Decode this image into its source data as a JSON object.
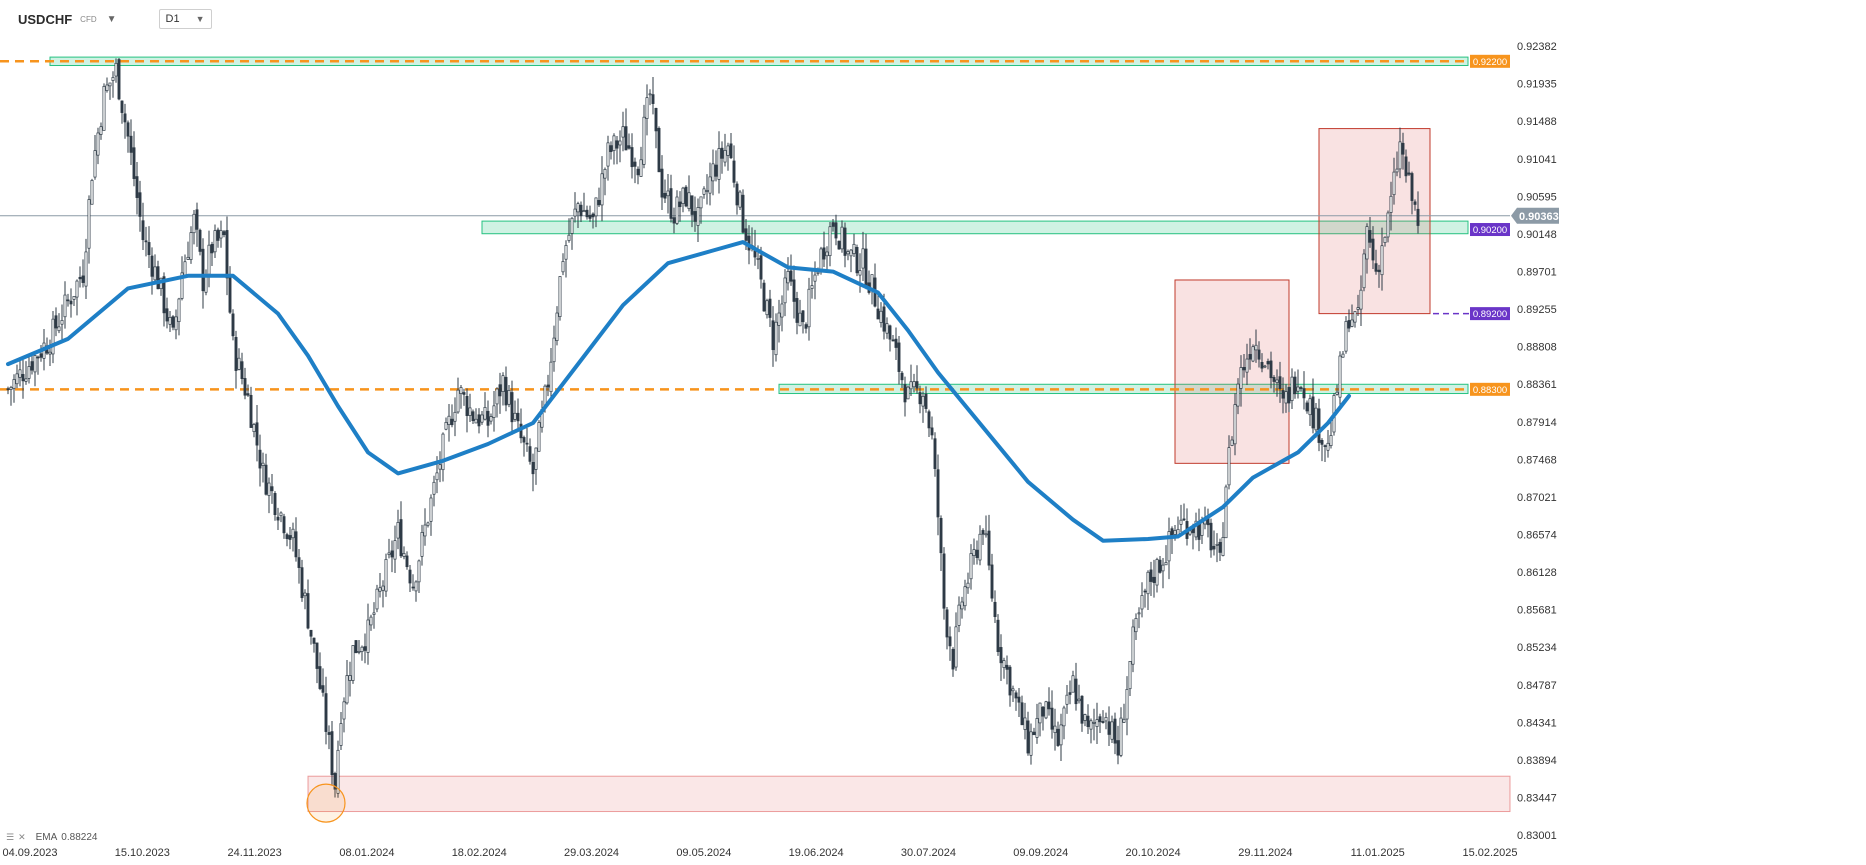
{
  "header": {
    "symbol": "USDCHF",
    "instrument_type": "CFD",
    "symbol_dropdown_icon": "chevron-down-icon",
    "timeframe": "D1",
    "timeframe_dropdown_icon": "chevron-down-icon"
  },
  "indicator_legend": {
    "icons": [
      "list-icon",
      "close-icon"
    ],
    "name": "EMA",
    "value": "0.88224"
  },
  "colors": {
    "bull_candle": "#ffffff",
    "bear_candle": "#2f3b46",
    "wick": "#2f3b46",
    "ema": "#1e7fc6",
    "support_orange": "#f7941d",
    "zone_green": "#26c281",
    "zone_red": "#e06060",
    "purple": "#6a35c8",
    "current_price": "#8c9aa6",
    "target_circle": "#f7941d"
  },
  "chart_data": {
    "type": "candlestick",
    "y_axis_ticks": [
      "0.92382",
      "0.91935",
      "0.91488",
      "0.91041",
      "0.90595",
      "0.90148",
      "0.89701",
      "0.89255",
      "0.88808",
      "0.88361",
      "0.87914",
      "0.87468",
      "0.87021",
      "0.86574",
      "0.86128",
      "0.85681",
      "0.85234",
      "0.84787",
      "0.84341",
      "0.83894",
      "0.83447",
      "0.83001"
    ],
    "x_axis_ticks": [
      "04.09.2023",
      "15.10.2023",
      "24.11.2023",
      "08.01.2024",
      "18.02.2024",
      "29.03.2024",
      "09.05.2024",
      "19.06.2024",
      "30.07.2024",
      "09.09.2024",
      "20.10.2024",
      "29.11.2024",
      "11.01.2025",
      "15.02.2025"
    ],
    "ylim": [
      0.83001,
      0.92382
    ],
    "current_price": "0.90363",
    "levels": [
      {
        "price": 0.922,
        "label": "0.92200",
        "style": "orange-dashed"
      },
      {
        "price": 0.902,
        "label": "0.90200",
        "style": "purple-box"
      },
      {
        "price": 0.892,
        "label": "0.89200",
        "style": "purple-dashed"
      },
      {
        "price": 0.883,
        "label": "0.88300",
        "style": "orange-dashed"
      }
    ],
    "close_path": [
      [
        0,
        0.883
      ],
      [
        14,
        0.889
      ],
      [
        18,
        0.892
      ],
      [
        25,
        0.897
      ],
      [
        28,
        0.909
      ],
      [
        32,
        0.918
      ],
      [
        36,
        0.921
      ],
      [
        40,
        0.913
      ],
      [
        45,
        0.901
      ],
      [
        50,
        0.896
      ],
      [
        55,
        0.889
      ],
      [
        58,
        0.897
      ],
      [
        62,
        0.903
      ],
      [
        65,
        0.896
      ],
      [
        68,
        0.9
      ],
      [
        72,
        0.901
      ],
      [
        75,
        0.888
      ],
      [
        80,
        0.882
      ],
      [
        85,
        0.873
      ],
      [
        90,
        0.869
      ],
      [
        95,
        0.865
      ],
      [
        100,
        0.856
      ],
      [
        103,
        0.85
      ],
      [
        106,
        0.843
      ],
      [
        109,
        0.836
      ],
      [
        111,
        0.845
      ],
      [
        115,
        0.852
      ],
      [
        120,
        0.854
      ],
      [
        125,
        0.86
      ],
      [
        130,
        0.866
      ],
      [
        135,
        0.86
      ],
      [
        140,
        0.868
      ],
      [
        145,
        0.876
      ],
      [
        150,
        0.883
      ],
      [
        155,
        0.88
      ],
      [
        160,
        0.879
      ],
      [
        165,
        0.884
      ],
      [
        170,
        0.878
      ],
      [
        175,
        0.873
      ],
      [
        180,
        0.884
      ],
      [
        185,
        0.899
      ],
      [
        190,
        0.905
      ],
      [
        195,
        0.903
      ],
      [
        200,
        0.911
      ],
      [
        205,
        0.913
      ],
      [
        210,
        0.91
      ],
      [
        214,
        0.918
      ],
      [
        218,
        0.907
      ],
      [
        222,
        0.904
      ],
      [
        226,
        0.906
      ],
      [
        230,
        0.903
      ],
      [
        235,
        0.909
      ],
      [
        240,
        0.912
      ],
      [
        245,
        0.903
      ],
      [
        250,
        0.897
      ],
      [
        255,
        0.889
      ],
      [
        260,
        0.896
      ],
      [
        265,
        0.89
      ],
      [
        270,
        0.898
      ],
      [
        275,
        0.903
      ],
      [
        280,
        0.899
      ],
      [
        285,
        0.898
      ],
      [
        290,
        0.893
      ],
      [
        295,
        0.888
      ],
      [
        300,
        0.882
      ],
      [
        305,
        0.883
      ],
      [
        308,
        0.877
      ],
      [
        310,
        0.868
      ],
      [
        312,
        0.857
      ],
      [
        315,
        0.851
      ],
      [
        318,
        0.858
      ],
      [
        322,
        0.863
      ],
      [
        325,
        0.867
      ],
      [
        330,
        0.853
      ],
      [
        335,
        0.847
      ],
      [
        340,
        0.841
      ],
      [
        345,
        0.845
      ],
      [
        350,
        0.841
      ],
      [
        355,
        0.848
      ],
      [
        360,
        0.842
      ],
      [
        365,
        0.845
      ],
      [
        370,
        0.84
      ],
      [
        375,
        0.853
      ],
      [
        380,
        0.86
      ],
      [
        385,
        0.863
      ],
      [
        390,
        0.867
      ],
      [
        395,
        0.867
      ],
      [
        400,
        0.866
      ],
      [
        404,
        0.862
      ],
      [
        406,
        0.872
      ],
      [
        410,
        0.884
      ],
      [
        415,
        0.889
      ],
      [
        420,
        0.886
      ],
      [
        425,
        0.881
      ],
      [
        430,
        0.885
      ],
      [
        435,
        0.88
      ],
      [
        440,
        0.876
      ],
      [
        443,
        0.883
      ],
      [
        447,
        0.892
      ],
      [
        450,
        0.891
      ],
      [
        453,
        0.902
      ],
      [
        456,
        0.897
      ],
      [
        460,
        0.903
      ],
      [
        464,
        0.912
      ],
      [
        467,
        0.907
      ],
      [
        470,
        0.903
      ]
    ],
    "ema": [
      [
        0,
        0.886
      ],
      [
        20,
        0.889
      ],
      [
        40,
        0.895
      ],
      [
        60,
        0.8965
      ],
      [
        75,
        0.8965
      ],
      [
        90,
        0.892
      ],
      [
        100,
        0.887
      ],
      [
        110,
        0.881
      ],
      [
        120,
        0.8755
      ],
      [
        130,
        0.873
      ],
      [
        145,
        0.8745
      ],
      [
        160,
        0.8765
      ],
      [
        175,
        0.879
      ],
      [
        190,
        0.886
      ],
      [
        205,
        0.893
      ],
      [
        220,
        0.898
      ],
      [
        235,
        0.8995
      ],
      [
        245,
        0.9005
      ],
      [
        260,
        0.8975
      ],
      [
        275,
        0.897
      ],
      [
        290,
        0.8945
      ],
      [
        300,
        0.89
      ],
      [
        310,
        0.885
      ],
      [
        325,
        0.8785
      ],
      [
        340,
        0.872
      ],
      [
        355,
        0.8675
      ],
      [
        365,
        0.865
      ],
      [
        380,
        0.8652
      ],
      [
        390,
        0.8655
      ],
      [
        405,
        0.869
      ],
      [
        415,
        0.8725
      ],
      [
        430,
        0.8755
      ],
      [
        440,
        0.879
      ],
      [
        447,
        0.8822
      ]
    ],
    "zones": [
      {
        "type": "green",
        "from_x": 14,
        "to_x": "end",
        "low": 0.9215,
        "high": 0.9225
      },
      {
        "type": "green",
        "from_x": 158,
        "to_x": "end",
        "low": 0.9015,
        "high": 0.903
      },
      {
        "type": "green",
        "from_x": 257,
        "to_x": "end",
        "low": 0.8825,
        "high": 0.8836
      },
      {
        "type": "red-fill",
        "from_x": 100,
        "to_x": "end",
        "low": 0.8328,
        "high": 0.837
      },
      {
        "type": "red-box",
        "from_x": 389,
        "to_x": 427,
        "low": 0.8742,
        "high": 0.896
      },
      {
        "type": "red-box",
        "from_x": 437,
        "to_x": 474,
        "low": 0.892,
        "high": 0.914
      }
    ],
    "annotation_circle": {
      "x": 106,
      "price": 0.8338
    }
  }
}
